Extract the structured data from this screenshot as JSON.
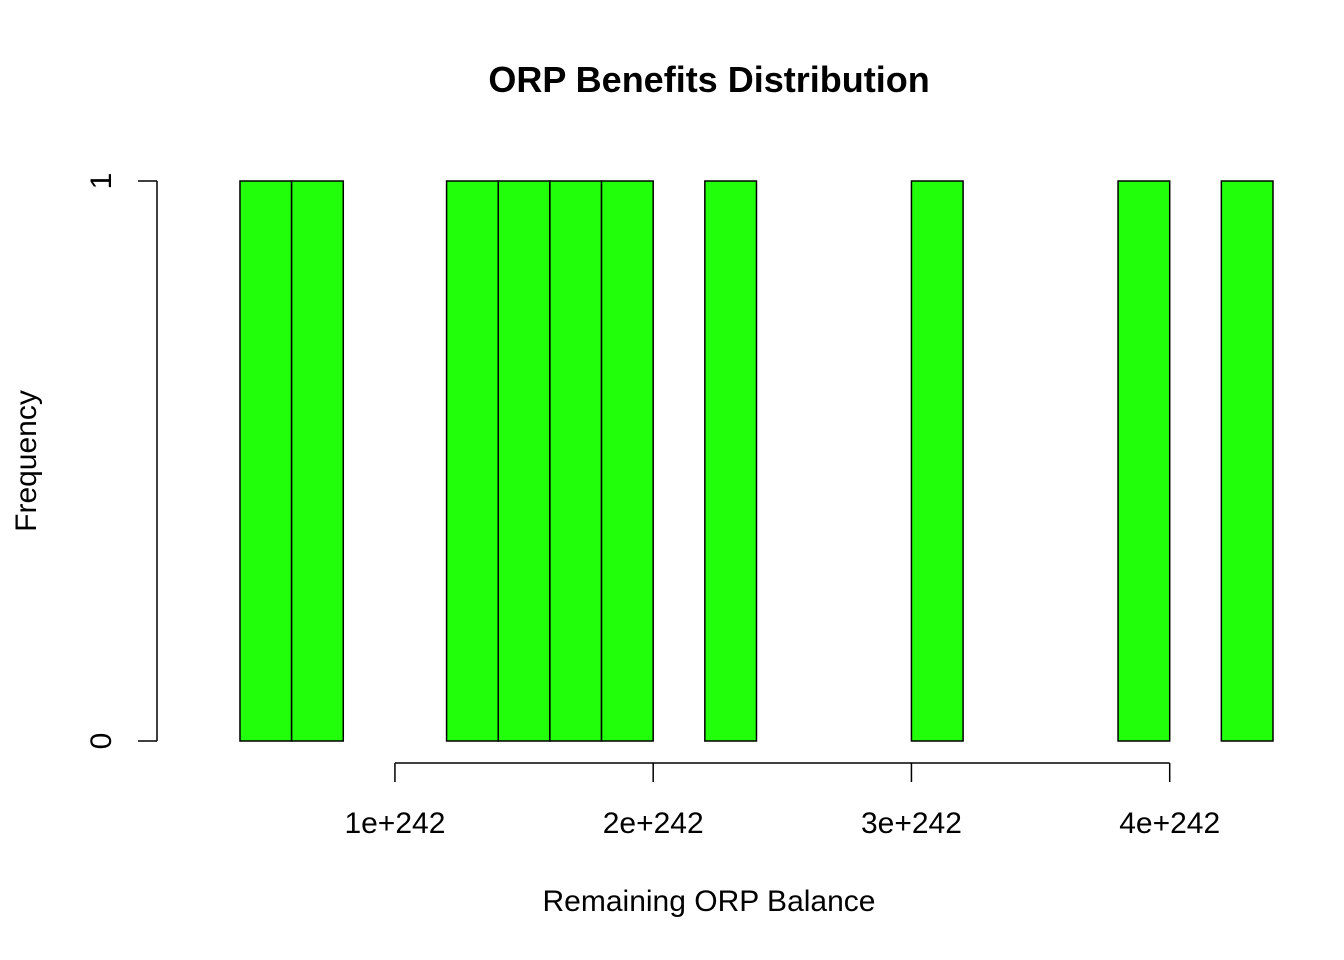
{
  "chart_data": {
    "type": "bar",
    "title": "ORP Benefits Distribution",
    "xlabel": "Remaining ORP Balance",
    "ylabel": "Frequency",
    "bar_color": "#22ff0a",
    "bin_width": 2e+241,
    "xlim": [
      4e+240,
      4.4e+242
    ],
    "ylim": [
      0,
      1
    ],
    "x_ticks": [
      {
        "value": 1e+242,
        "label": "1e+242"
      },
      {
        "value": 2e+242,
        "label": "2e+242"
      },
      {
        "value": 3e+242,
        "label": "3e+242"
      },
      {
        "value": 4e+242,
        "label": "4e+242"
      }
    ],
    "x_axis_range": [
      1e+242,
      4e+242
    ],
    "y_ticks": [
      {
        "value": 0,
        "label": "0"
      },
      {
        "value": 1,
        "label": "1"
      }
    ],
    "bins": [
      {
        "start": 4e+241,
        "end": 6e+241,
        "count": 1
      },
      {
        "start": 6e+241,
        "end": 8e+241,
        "count": 1
      },
      {
        "start": 8e+241,
        "end": 1e+242,
        "count": 0
      },
      {
        "start": 1e+242,
        "end": 1.2e+242,
        "count": 0
      },
      {
        "start": 1.2e+242,
        "end": 1.4e+242,
        "count": 1
      },
      {
        "start": 1.4e+242,
        "end": 1.6e+242,
        "count": 1
      },
      {
        "start": 1.6e+242,
        "end": 1.8e+242,
        "count": 1
      },
      {
        "start": 1.8e+242,
        "end": 2e+242,
        "count": 1
      },
      {
        "start": 2e+242,
        "end": 2.2e+242,
        "count": 0
      },
      {
        "start": 2.2e+242,
        "end": 2.4e+242,
        "count": 1
      },
      {
        "start": 2.4e+242,
        "end": 2.6e+242,
        "count": 0
      },
      {
        "start": 2.6e+242,
        "end": 2.8e+242,
        "count": 0
      },
      {
        "start": 2.8e+242,
        "end": 3e+242,
        "count": 0
      },
      {
        "start": 3e+242,
        "end": 3.2e+242,
        "count": 1
      },
      {
        "start": 3.2e+242,
        "end": 3.4e+242,
        "count": 0
      },
      {
        "start": 3.4e+242,
        "end": 3.6e+242,
        "count": 0
      },
      {
        "start": 3.6e+242,
        "end": 3.8e+242,
        "count": 0
      },
      {
        "start": 3.8e+242,
        "end": 4e+242,
        "count": 1
      },
      {
        "start": 4e+242,
        "end": 4.2e+242,
        "count": 0
      },
      {
        "start": 4.2e+242,
        "end": 4.4e+242,
        "count": 1
      }
    ]
  }
}
